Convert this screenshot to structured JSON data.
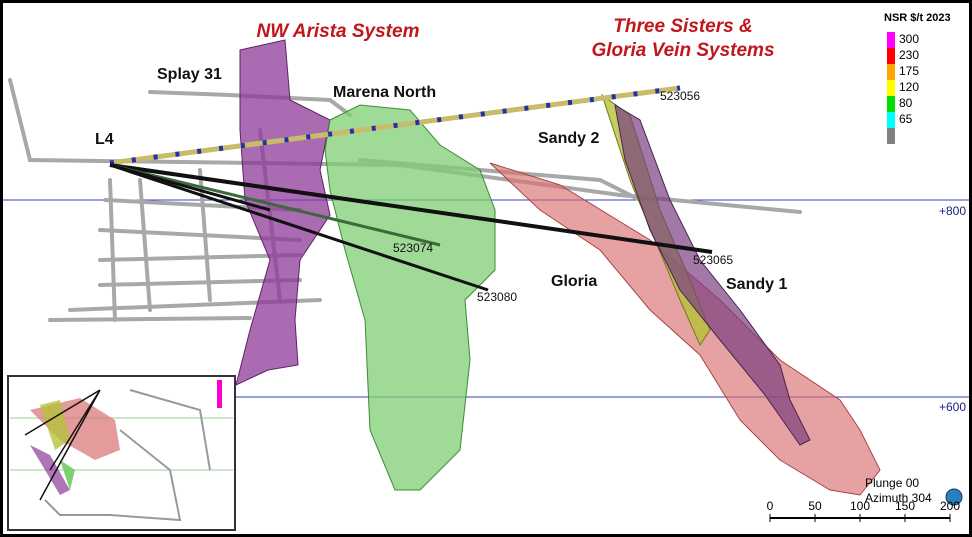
{
  "titles": {
    "nw_arista": "NW Arista System",
    "three_sisters": [
      "Three Sisters &",
      "Gloria Vein Systems"
    ]
  },
  "zones": {
    "splay31": "Splay 31",
    "marena_north": "Marena North",
    "l4": "L4",
    "sandy2": "Sandy 2",
    "gloria": "Gloria",
    "sandy1": "Sandy 1"
  },
  "drill_holes": {
    "h1": "523056",
    "h2": "523074",
    "h3": "523080",
    "h4": "523065"
  },
  "elevations": [
    "+800",
    "+600"
  ],
  "legend": {
    "title": "NSR $/t 2023",
    "items": [
      {
        "value": 300,
        "color": "#ff00ff"
      },
      {
        "value": 230,
        "color": "#ff0000"
      },
      {
        "value": 175,
        "color": "#ffa500"
      },
      {
        "value": 120,
        "color": "#ffff00"
      },
      {
        "value": 80,
        "color": "#00dd00"
      },
      {
        "value": 65,
        "color": "#00ffff"
      }
    ],
    "below_color": "#808080"
  },
  "view": {
    "plunge": "Plunge 00",
    "azimuth": "Azimuth 304"
  },
  "scale_bar": {
    "range": [
      0,
      200
    ],
    "ticks": [
      0,
      50,
      100,
      150,
      200
    ]
  }
}
